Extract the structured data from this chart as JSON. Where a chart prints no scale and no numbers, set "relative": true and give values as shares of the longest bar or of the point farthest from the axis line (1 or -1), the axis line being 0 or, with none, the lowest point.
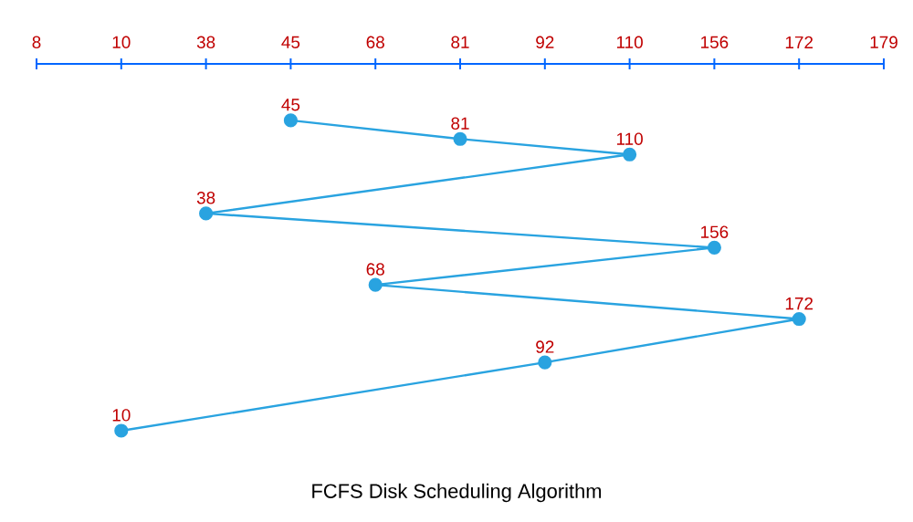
{
  "chart_data": {
    "type": "line",
    "title": "FCFS Disk Scheduling Algorithm",
    "relative": true,
    "marker": "circle",
    "tick_labels": "x",
    "categories": [
      "8",
      "10",
      "38",
      "45",
      "68",
      "81",
      "92",
      "110",
      "156",
      "172",
      "179"
    ],
    "series": [
      {
        "color": "#29a3e0",
        "x": [
          "45",
          "81",
          "110",
          "38",
          "156",
          "68",
          "172",
          "92",
          "10"
        ],
        "values": [
          1.0,
          0.94,
          0.89,
          0.7,
          0.59,
          0.47,
          0.36,
          0.22,
          0.0
        ]
      }
    ],
    "annotations": [
      {
        "text": "45",
        "x": "45",
        "y": 1.0
      },
      {
        "text": "81",
        "x": "81",
        "y": 0.94
      },
      {
        "text": "110",
        "x": "110",
        "y": 0.89
      },
      {
        "text": "38",
        "x": "38",
        "y": 0.7
      },
      {
        "text": "156",
        "x": "156",
        "y": 0.59
      },
      {
        "text": "68",
        "x": "68",
        "y": 0.47
      },
      {
        "text": "172",
        "x": "172",
        "y": 0.36
      },
      {
        "text": "92",
        "x": "92",
        "y": 0.22
      },
      {
        "text": "10",
        "x": "10",
        "y": 0.0
      }
    ]
  }
}
